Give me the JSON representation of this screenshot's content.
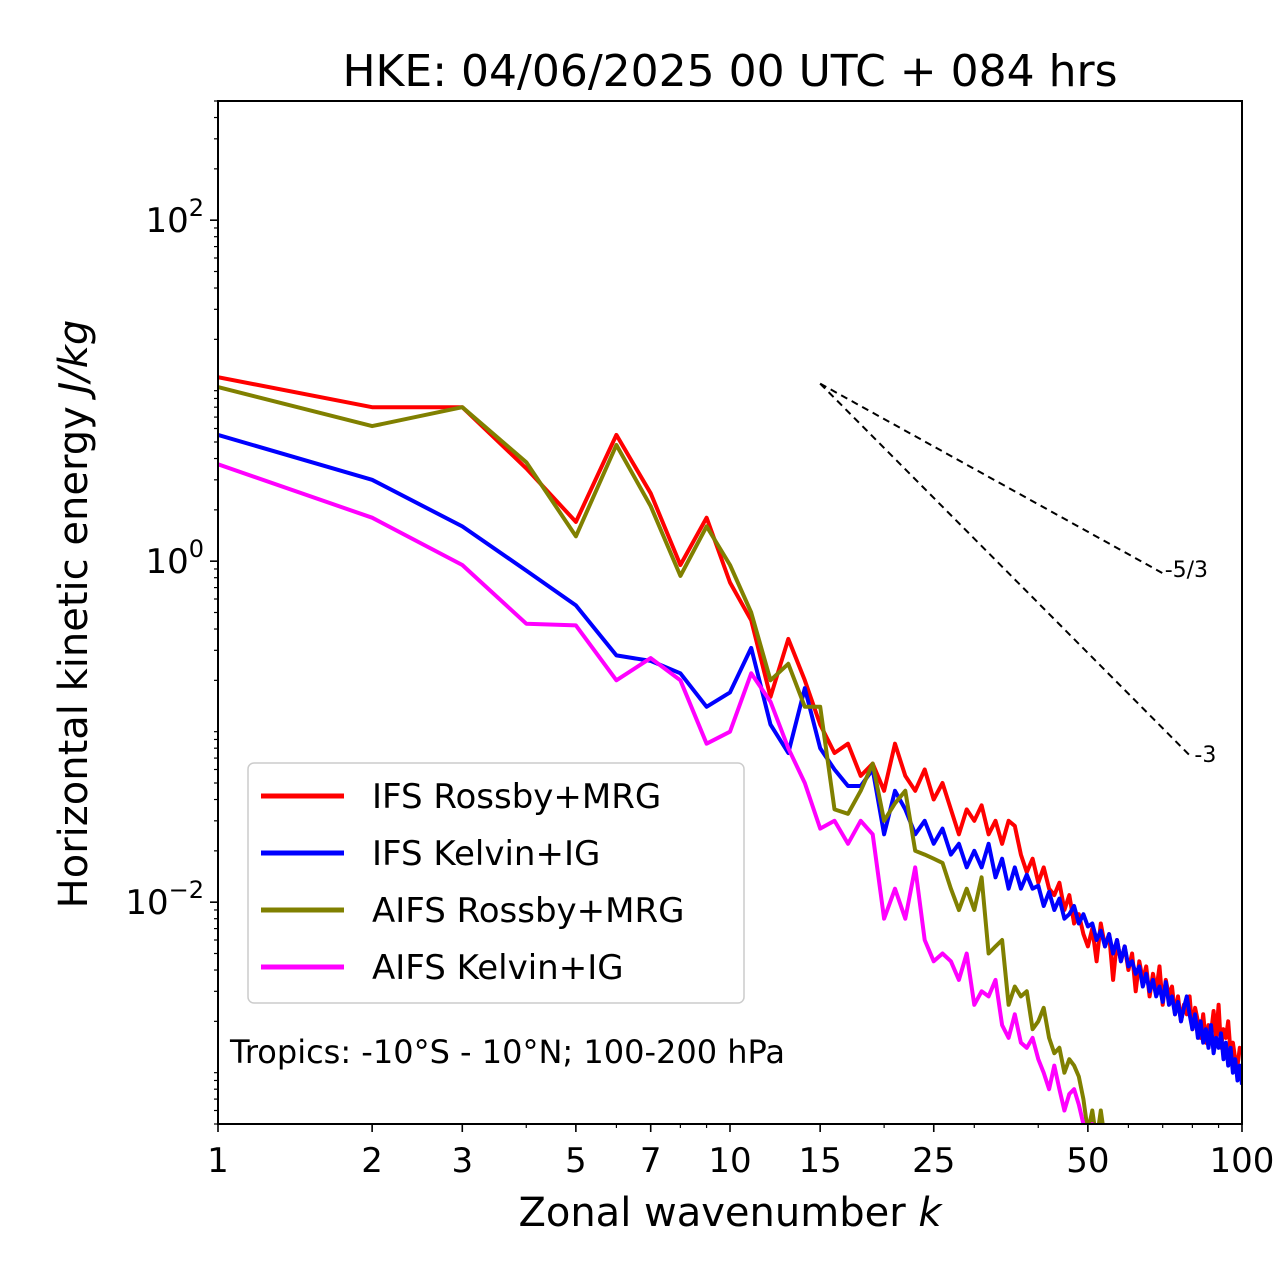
{
  "chart_data": {
    "type": "line",
    "title": "HKE: 04/06/2025 00 UTC + 084 hrs",
    "xlabel_main": "Zonal wavenumber ",
    "xlabel_italic": "k",
    "ylabel_main": "Horizontal kinetic energy ",
    "ylabel_italic": "J/kg",
    "xscale": "log",
    "yscale": "log",
    "xlim": [
      1,
      100
    ],
    "ylim": [
      0.0005,
      500
    ],
    "xticks": [
      {
        "value": 1,
        "label": "1"
      },
      {
        "value": 2,
        "label": "2"
      },
      {
        "value": 3,
        "label": "3"
      },
      {
        "value": 5,
        "label": "5"
      },
      {
        "value": 7,
        "label": "7"
      },
      {
        "value": 10,
        "label": "10"
      },
      {
        "value": 15,
        "label": "15"
      },
      {
        "value": 25,
        "label": "25"
      },
      {
        "value": 50,
        "label": "50"
      },
      {
        "value": 100,
        "label": "100"
      }
    ],
    "yticks": [
      {
        "value": 0.01,
        "base": "10",
        "exp": "−2"
      },
      {
        "value": 1,
        "base": "10",
        "exp": "0"
      },
      {
        "value": 100,
        "base": "10",
        "exp": "2"
      }
    ],
    "legend_position": "lower-left",
    "annotation": "Tropics: -10°S - 10°N; 100-200 hPa",
    "reference_lines": [
      {
        "label": "-5/3",
        "x": [
          15,
          70
        ],
        "y": [
          11,
          0.85
        ]
      },
      {
        "label": "-3",
        "x": [
          15,
          80
        ],
        "y": [
          11,
          0.07
        ]
      }
    ],
    "series": [
      {
        "name": "IFS Rossby+MRG",
        "color": "#ff0000",
        "x": [
          1,
          2,
          3,
          4,
          5,
          6,
          7,
          8,
          9,
          10,
          11,
          12,
          13,
          14,
          15,
          16,
          17,
          18,
          19,
          20,
          21,
          22,
          23,
          24,
          25,
          26,
          27,
          28,
          29,
          30,
          31,
          32,
          33,
          34,
          35,
          36,
          37,
          38,
          39,
          40,
          41,
          42,
          43,
          44,
          45,
          46,
          47,
          48,
          49,
          50,
          51,
          52,
          53,
          54,
          55,
          56,
          57,
          58,
          59,
          60,
          61,
          62,
          63,
          64,
          65,
          66,
          67,
          68,
          69,
          70,
          71,
          72,
          73,
          74,
          75,
          76,
          77,
          78,
          79,
          80,
          81,
          82,
          83,
          84,
          85,
          86,
          87,
          88,
          89,
          90,
          91,
          92,
          93,
          94,
          95,
          96,
          97,
          98,
          99,
          100
        ],
        "y": [
          12,
          8,
          8,
          3.5,
          1.7,
          5.5,
          2.5,
          0.95,
          1.8,
          0.75,
          0.45,
          0.16,
          0.35,
          0.2,
          0.11,
          0.075,
          0.085,
          0.055,
          0.065,
          0.045,
          0.085,
          0.055,
          0.045,
          0.06,
          0.04,
          0.05,
          0.035,
          0.025,
          0.035,
          0.03,
          0.037,
          0.025,
          0.03,
          0.022,
          0.03,
          0.028,
          0.019,
          0.015,
          0.018,
          0.013,
          0.016,
          0.012,
          0.011,
          0.013,
          0.009,
          0.011,
          0.0075,
          0.0085,
          0.0065,
          0.0055,
          0.007,
          0.0045,
          0.0075,
          0.0055,
          0.0065,
          0.0035,
          0.006,
          0.0045,
          0.0055,
          0.004,
          0.005,
          0.003,
          0.0045,
          0.0035,
          0.0042,
          0.0028,
          0.0038,
          0.003,
          0.0042,
          0.0025,
          0.0035,
          0.0028,
          0.0032,
          0.0022,
          0.0028,
          0.002,
          0.0025,
          0.0022,
          0.0028,
          0.0018,
          0.0024,
          0.002,
          0.0016,
          0.0022,
          0.0015,
          0.0019,
          0.0017,
          0.0023,
          0.0016,
          0.0025,
          0.0014,
          0.0018,
          0.0016,
          0.002,
          0.0013,
          0.0015,
          0.0012,
          0.0011,
          0.0014,
          0.0013
        ]
      },
      {
        "name": "IFS Kelvin+IG",
        "color": "#0000ff",
        "x": [
          1,
          2,
          3,
          4,
          5,
          6,
          7,
          8,
          9,
          10,
          11,
          12,
          13,
          14,
          15,
          16,
          17,
          18,
          19,
          20,
          21,
          22,
          23,
          24,
          25,
          26,
          27,
          28,
          29,
          30,
          31,
          32,
          33,
          34,
          35,
          36,
          37,
          38,
          39,
          40,
          41,
          42,
          43,
          44,
          45,
          46,
          47,
          48,
          49,
          50,
          51,
          52,
          53,
          54,
          55,
          56,
          57,
          58,
          59,
          60,
          61,
          62,
          63,
          64,
          65,
          66,
          67,
          68,
          69,
          70,
          71,
          72,
          73,
          74,
          75,
          76,
          77,
          78,
          79,
          80,
          81,
          82,
          83,
          84,
          85,
          86,
          87,
          88,
          89,
          90,
          91,
          92,
          93,
          94,
          95,
          96,
          97,
          98,
          99,
          100
        ],
        "y": [
          5.5,
          3,
          1.6,
          0.88,
          0.55,
          0.28,
          0.26,
          0.22,
          0.14,
          0.17,
          0.31,
          0.11,
          0.075,
          0.18,
          0.08,
          0.06,
          0.048,
          0.048,
          0.06,
          0.025,
          0.045,
          0.035,
          0.025,
          0.03,
          0.022,
          0.027,
          0.019,
          0.022,
          0.016,
          0.02,
          0.016,
          0.022,
          0.014,
          0.018,
          0.012,
          0.016,
          0.012,
          0.0145,
          0.012,
          0.0125,
          0.0095,
          0.0115,
          0.009,
          0.0105,
          0.008,
          0.0085,
          0.0095,
          0.0075,
          0.0085,
          0.0072,
          0.0075,
          0.006,
          0.0068,
          0.0055,
          0.0065,
          0.005,
          0.006,
          0.0045,
          0.0055,
          0.0042,
          0.0045,
          0.0038,
          0.0042,
          0.0032,
          0.0038,
          0.003,
          0.0035,
          0.0028,
          0.0032,
          0.0026,
          0.0034,
          0.0025,
          0.0028,
          0.0022,
          0.0026,
          0.002,
          0.0024,
          0.0028,
          0.0022,
          0.0018,
          0.0022,
          0.0016,
          0.002,
          0.0015,
          0.0018,
          0.0014,
          0.0019,
          0.0013,
          0.0016,
          0.0014,
          0.0017,
          0.0012,
          0.0015,
          0.0011,
          0.0014,
          0.001,
          0.0012,
          0.0009,
          0.0011,
          0.00085
        ]
      },
      {
        "name": "AIFS Rossby+MRG",
        "color": "#808000",
        "x": [
          1,
          2,
          3,
          4,
          5,
          6,
          7,
          8,
          9,
          10,
          11,
          12,
          13,
          14,
          15,
          16,
          17,
          18,
          19,
          20,
          21,
          22,
          23,
          24,
          25,
          26,
          27,
          28,
          29,
          30,
          31,
          32,
          33,
          34,
          35,
          36,
          37,
          38,
          39,
          40,
          41,
          42,
          43,
          44,
          45,
          46,
          47,
          48,
          49,
          50,
          51,
          52,
          53,
          54
        ],
        "y": [
          10.5,
          6.2,
          8,
          3.8,
          1.4,
          4.8,
          2.1,
          0.82,
          1.6,
          0.95,
          0.5,
          0.2,
          0.25,
          0.14,
          0.14,
          0.035,
          0.033,
          0.045,
          0.065,
          0.03,
          0.038,
          0.045,
          0.02,
          0.019,
          0.018,
          0.017,
          0.012,
          0.009,
          0.012,
          0.009,
          0.014,
          0.005,
          0.0055,
          0.006,
          0.0025,
          0.0032,
          0.0028,
          0.003,
          0.0018,
          0.002,
          0.0024,
          0.0016,
          0.0013,
          0.0014,
          0.001,
          0.0012,
          0.0011,
          0.00095,
          0.0007,
          0.00045,
          0.0006,
          0.0004,
          0.0006,
          0.0004
        ]
      },
      {
        "name": "AIFS Kelvin+IG",
        "color": "#ff00ff",
        "x": [
          1,
          2,
          3,
          4,
          5,
          6,
          7,
          8,
          9,
          10,
          11,
          12,
          13,
          14,
          15,
          16,
          17,
          18,
          19,
          20,
          21,
          22,
          23,
          24,
          25,
          26,
          27,
          28,
          29,
          30,
          31,
          32,
          33,
          34,
          35,
          36,
          37,
          38,
          39,
          40,
          41,
          42,
          43,
          44,
          45,
          46,
          47,
          48,
          49,
          50,
          51,
          52,
          53
        ],
        "y": [
          3.7,
          1.8,
          0.95,
          0.43,
          0.42,
          0.2,
          0.27,
          0.2,
          0.085,
          0.1,
          0.22,
          0.15,
          0.08,
          0.05,
          0.027,
          0.03,
          0.022,
          0.03,
          0.025,
          0.008,
          0.012,
          0.008,
          0.016,
          0.006,
          0.0045,
          0.005,
          0.0045,
          0.0035,
          0.005,
          0.0025,
          0.003,
          0.0028,
          0.0035,
          0.0019,
          0.0016,
          0.0022,
          0.0015,
          0.0014,
          0.0016,
          0.0012,
          0.001,
          0.0008,
          0.0011,
          0.0008,
          0.0006,
          0.00075,
          0.0008,
          0.00065,
          0.0005,
          0.0004,
          0.0005,
          0.00035,
          0.0004
        ]
      }
    ]
  }
}
